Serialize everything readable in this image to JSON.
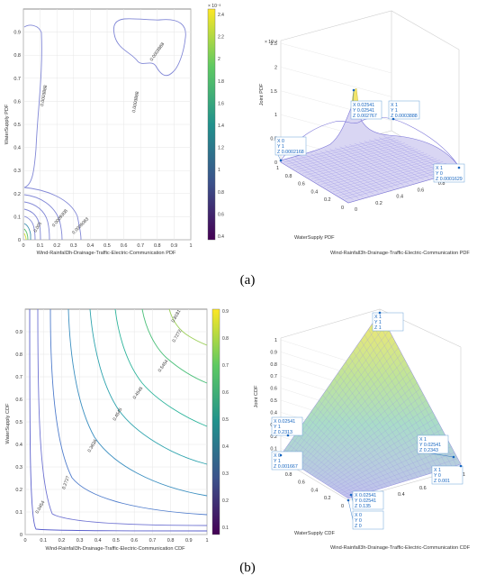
{
  "panel_a": {
    "label": "(a)",
    "contour": {
      "xlabel": "Wind-Rainfall3h-Drainage-Traffic-Electric-Communication PDF",
      "ylabel": "WaterSupply PDF",
      "xticks": [
        "0",
        "0.1",
        "0.2",
        "0.3",
        "0.4",
        "0.5",
        "0.6",
        "0.7",
        "0.8",
        "0.9",
        "1"
      ],
      "yticks": [
        "0",
        "0.1",
        "0.2",
        "0.3",
        "0.4",
        "0.5",
        "0.6",
        "0.7",
        "0.8",
        "0.9"
      ],
      "levels": [
        "0.0003888",
        "0.0003888",
        "0.0003888",
        "0.0006083",
        "0.0009308",
        "0.001"
      ],
      "colorbar": {
        "exponent": "× 10⁻³",
        "ticks": [
          "2.4",
          "2.2",
          "2",
          "1.8",
          "1.6",
          "1.4",
          "1.2",
          "1",
          "0.8",
          "0.6",
          "0.4"
        ],
        "colors": [
          "#440154",
          "#3b528b",
          "#21918c",
          "#5ec962",
          "#fde725"
        ]
      }
    },
    "surface": {
      "zlabel": "Joint PDF",
      "xlabel": "Wind-Rainfall3h-Drainage-Traffic-Electric-Communication PDF",
      "ylabel": "WaterSupply PDF",
      "exponent": "× 10⁻³",
      "zticks": [
        "0",
        "0.5",
        "1",
        "1.5",
        "2",
        "2.5"
      ],
      "xticks": [
        "0",
        "0.2",
        "0.4",
        "0.6",
        "0.8",
        "1"
      ],
      "yticks": [
        "0",
        "0.2",
        "0.4",
        "0.6",
        "0.8",
        "1"
      ],
      "datatips": [
        {
          "l1": "X 0.02541",
          "l2": "Y 0.02541",
          "l3": "Z 0.002767"
        },
        {
          "l1": "X 1",
          "l2": "Y 1",
          "l3": "Z 0.0003888"
        },
        {
          "l1": "X 0",
          "l2": "Y 1",
          "l3": "Z 0.0002168"
        },
        {
          "l1": "X 1",
          "l2": "Y 0",
          "l3": "Z 0.0001629"
        }
      ]
    }
  },
  "panel_b": {
    "label": "(b)",
    "contour": {
      "xlabel": "Wind-Rainfall3h-Drainage-Traffic-Electric-Communication CDF",
      "ylabel": "WaterSupply CDF",
      "xticks": [
        "0",
        "0.1",
        "0.2",
        "0.3",
        "0.4",
        "0.5",
        "0.6",
        "0.7",
        "0.8",
        "0.9",
        "1"
      ],
      "yticks": [
        "0",
        "0.1",
        "0.2",
        "0.3",
        "0.4",
        "0.5",
        "0.6",
        "0.7",
        "0.8",
        "0.9"
      ],
      "levels": [
        "0.0454",
        "0.1818",
        "0.2727",
        "0.3636",
        "0.4545",
        "0.4545",
        "0.5454",
        "0.6363",
        "0.7272",
        "0.8181"
      ],
      "colorbar": {
        "ticks": [
          "0.9",
          "0.8",
          "0.7",
          "0.6",
          "0.5",
          "0.4",
          "0.3",
          "0.2",
          "0.1"
        ],
        "colors": [
          "#440154",
          "#3b528b",
          "#21918c",
          "#5ec962",
          "#fde725"
        ]
      }
    },
    "surface": {
      "zlabel": "Joint CDF",
      "xlabel": "Wind-Rainfall3h-Drainage-Traffic-Electric-Communication CDF",
      "ylabel": "WaterSupply CDF",
      "zticks": [
        "0",
        "0.1",
        "0.2",
        "0.3",
        "0.4",
        "0.5",
        "0.6",
        "0.7",
        "0.8",
        "0.9",
        "1"
      ],
      "xticks": [
        "0",
        "0.2",
        "0.4",
        "0.6",
        "0.8",
        "1"
      ],
      "yticks": [
        "0",
        "0.2",
        "0.4",
        "0.6",
        "0.8",
        "1"
      ],
      "datatips": [
        {
          "l1": "X 1",
          "l2": "Y 1",
          "l3": "Z 1"
        },
        {
          "l1": "X 0.02541",
          "l2": "Y 1",
          "l3": "Z 0.2313"
        },
        {
          "l1": "X 1",
          "l2": "Y 0.02541",
          "l3": "Z 0.2343"
        },
        {
          "l1": "X 0",
          "l2": "Y 1",
          "l3": "Z 0.001667"
        },
        {
          "l1": "X 1",
          "l2": "Y 0",
          "l3": "Z 0.001"
        },
        {
          "l1": "X 0.02541",
          "l2": "Y 0.02541",
          "l3": "Z 0.135"
        },
        {
          "l1": "X 0",
          "l2": "Y 0",
          "l3": "Z 0"
        }
      ]
    }
  },
  "chart_data": [
    {
      "type": "contour",
      "xlabel": "Wind-Rainfall3h-Drainage-Traffic-Electric-Communication PDF",
      "ylabel": "WaterSupply PDF",
      "xlim": [
        0,
        1
      ],
      "ylim": [
        0,
        1
      ],
      "levels": [
        0.0003888,
        0.0006083,
        0.0009308,
        0.001
      ],
      "colorbar_range": [
        0.0004,
        0.0024
      ]
    },
    {
      "type": "surface",
      "zlabel": "Joint PDF",
      "xlabel": "Wind-Rainfall3h-Drainage-Traffic-Electric-Communication PDF",
      "ylabel": "WaterSupply PDF",
      "points": [
        {
          "x": 0.02541,
          "y": 0.02541,
          "z": 0.002767
        },
        {
          "x": 1,
          "y": 1,
          "z": 0.0003888
        },
        {
          "x": 0,
          "y": 1,
          "z": 0.0002168
        },
        {
          "x": 1,
          "y": 0,
          "z": 0.0001629
        }
      ],
      "zlim": [
        0,
        0.0025
      ]
    },
    {
      "type": "contour",
      "xlabel": "Wind-Rainfall3h-Drainage-Traffic-Electric-Communication CDF",
      "ylabel": "WaterSupply CDF",
      "xlim": [
        0,
        1
      ],
      "ylim": [
        0,
        1
      ],
      "levels": [
        0.0454,
        0.1818,
        0.2727,
        0.3636,
        0.4545,
        0.5454,
        0.6363,
        0.7272,
        0.8181
      ],
      "colorbar_range": [
        0.1,
        0.9
      ]
    },
    {
      "type": "surface",
      "zlabel": "Joint CDF",
      "xlabel": "Wind-Rainfall3h-Drainage-Traffic-Electric-Communication CDF",
      "ylabel": "WaterSupply CDF",
      "points": [
        {
          "x": 1,
          "y": 1,
          "z": 1
        },
        {
          "x": 0.02541,
          "y": 1,
          "z": 0.2313
        },
        {
          "x": 1,
          "y": 0.02541,
          "z": 0.2343
        },
        {
          "x": 0,
          "y": 1,
          "z": 0.001667
        },
        {
          "x": 1,
          "y": 0,
          "z": 0.001
        },
        {
          "x": 0.02541,
          "y": 0.02541,
          "z": 0.135
        },
        {
          "x": 0,
          "y": 0,
          "z": 0
        }
      ],
      "zlim": [
        0,
        1
      ]
    }
  ]
}
